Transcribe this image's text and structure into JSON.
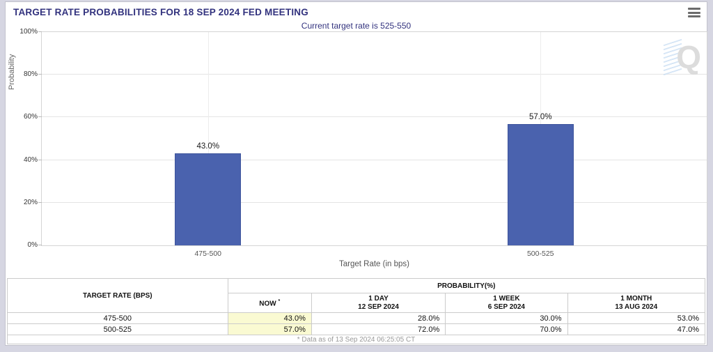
{
  "header": {
    "title": "TARGET RATE PROBABILITIES FOR 18 SEP 2024 FED MEETING"
  },
  "chart_data": {
    "type": "bar",
    "title": "Current target rate is 525-550",
    "categories": [
      "475-500",
      "500-525"
    ],
    "values": [
      43.0,
      57.0
    ],
    "bar_labels": [
      "43.0%",
      "57.0%"
    ],
    "xlabel": "Target Rate (in bps)",
    "ylabel": "Probability",
    "ylim": [
      0,
      100
    ],
    "y_ticks": [
      "0%",
      "20%",
      "40%",
      "60%",
      "80%",
      "100%"
    ],
    "grid": true,
    "legend": "none",
    "bar_color": "#4a62ae",
    "watermark_letter": "Q"
  },
  "table": {
    "col1_header": "TARGET RATE (BPS)",
    "group_header": "PROBABILITY(%)",
    "now_header": "NOW",
    "now_flag": "*",
    "period_headers": [
      {
        "line1": "1 DAY",
        "line2": "12 SEP 2024"
      },
      {
        "line1": "1 WEEK",
        "line2": "6 SEP 2024"
      },
      {
        "line1": "1 MONTH",
        "line2": "13 AUG 2024"
      }
    ],
    "rows": [
      {
        "rate": "475-500",
        "now": "43.0%",
        "day": "28.0%",
        "week": "30.0%",
        "month": "53.0%"
      },
      {
        "rate": "500-525",
        "now": "57.0%",
        "day": "72.0%",
        "week": "70.0%",
        "month": "47.0%"
      }
    ],
    "footnote": "* Data as of 13 Sep 2024 06:25:05 CT",
    "highlight_color": "#fafad2"
  }
}
